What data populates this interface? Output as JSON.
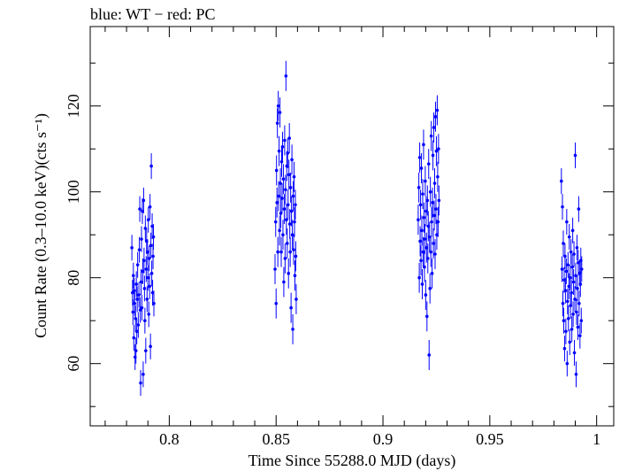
{
  "chart_data": {
    "type": "scatter",
    "title": "blue: WT − red: PC",
    "xlabel": "Time Since 55288.0 MJD (days)",
    "ylabel": "Count Rate (0.3–10.0 keV)(cts s⁻¹)",
    "xlim": [
      0.763,
      1.008
    ],
    "ylim": [
      45.5,
      138.5
    ],
    "x_ticks": [
      0.8,
      0.85,
      0.9,
      0.95,
      1
    ],
    "x_tick_labels": [
      "0.8",
      "0.85",
      "0.9",
      "0.95",
      "1"
    ],
    "y_ticks": [
      60,
      80,
      100,
      120
    ],
    "y_tick_labels": [
      "60",
      "80",
      "100",
      "120"
    ],
    "grid": false,
    "series": [
      {
        "name": "WT",
        "color": "#0000ff",
        "errorbar": true,
        "points": [
          {
            "x": 0.7825,
            "y": 87.0,
            "err": 3
          },
          {
            "x": 0.7828,
            "y": 76.5,
            "err": 3
          },
          {
            "x": 0.783,
            "y": 72.0,
            "err": 3
          },
          {
            "x": 0.7832,
            "y": 80.5,
            "err": 3
          },
          {
            "x": 0.7834,
            "y": 66.0,
            "err": 3
          },
          {
            "x": 0.7836,
            "y": 77.0,
            "err": 3
          },
          {
            "x": 0.7838,
            "y": 74.0,
            "err": 3
          },
          {
            "x": 0.784,
            "y": 61.5,
            "err": 3
          },
          {
            "x": 0.7842,
            "y": 70.5,
            "err": 3
          },
          {
            "x": 0.7844,
            "y": 63.0,
            "err": 3
          },
          {
            "x": 0.7846,
            "y": 78.5,
            "err": 3
          },
          {
            "x": 0.7848,
            "y": 67.5,
            "err": 3
          },
          {
            "x": 0.785,
            "y": 75.0,
            "err": 3
          },
          {
            "x": 0.7852,
            "y": 83.0,
            "err": 3
          },
          {
            "x": 0.7855,
            "y": 69.0,
            "err": 3
          },
          {
            "x": 0.7858,
            "y": 76.0,
            "err": 3
          },
          {
            "x": 0.786,
            "y": 86.5,
            "err": 3
          },
          {
            "x": 0.7862,
            "y": 96.0,
            "err": 3
          },
          {
            "x": 0.7864,
            "y": 72.5,
            "err": 3
          },
          {
            "x": 0.7866,
            "y": 55.5,
            "err": 3
          },
          {
            "x": 0.7868,
            "y": 79.0,
            "err": 3
          },
          {
            "x": 0.787,
            "y": 89.0,
            "err": 3
          },
          {
            "x": 0.7872,
            "y": 73.0,
            "err": 3
          },
          {
            "x": 0.7874,
            "y": 95.5,
            "err": 3
          },
          {
            "x": 0.7876,
            "y": 81.5,
            "err": 3
          },
          {
            "x": 0.7878,
            "y": 57.5,
            "err": 3
          },
          {
            "x": 0.788,
            "y": 98.0,
            "err": 3
          },
          {
            "x": 0.7882,
            "y": 84.0,
            "err": 3
          },
          {
            "x": 0.7884,
            "y": 77.5,
            "err": 3
          },
          {
            "x": 0.7886,
            "y": 70.0,
            "err": 3
          },
          {
            "x": 0.7888,
            "y": 91.5,
            "err": 3
          },
          {
            "x": 0.789,
            "y": 63.0,
            "err": 3
          },
          {
            "x": 0.7892,
            "y": 82.0,
            "err": 3
          },
          {
            "x": 0.7894,
            "y": 88.5,
            "err": 3
          },
          {
            "x": 0.7896,
            "y": 75.0,
            "err": 3
          },
          {
            "x": 0.7898,
            "y": 86.0,
            "err": 3
          },
          {
            "x": 0.79,
            "y": 80.0,
            "err": 3
          },
          {
            "x": 0.7902,
            "y": 93.5,
            "err": 3
          },
          {
            "x": 0.7904,
            "y": 71.5,
            "err": 3
          },
          {
            "x": 0.7906,
            "y": 84.5,
            "err": 3
          },
          {
            "x": 0.7908,
            "y": 78.0,
            "err": 3
          },
          {
            "x": 0.791,
            "y": 96.5,
            "err": 3
          },
          {
            "x": 0.7912,
            "y": 64.0,
            "err": 3
          },
          {
            "x": 0.7914,
            "y": 87.5,
            "err": 3
          },
          {
            "x": 0.7916,
            "y": 106.0,
            "err": 3
          },
          {
            "x": 0.7918,
            "y": 81.0,
            "err": 3
          },
          {
            "x": 0.792,
            "y": 92.0,
            "err": 3
          },
          {
            "x": 0.7922,
            "y": 76.5,
            "err": 3
          },
          {
            "x": 0.7924,
            "y": 85.0,
            "err": 3
          },
          {
            "x": 0.7926,
            "y": 89.5,
            "err": 3
          },
          {
            "x": 0.7928,
            "y": 74.0,
            "err": 3
          },
          {
            "x": 0.8495,
            "y": 82.0,
            "err": 3.5
          },
          {
            "x": 0.8498,
            "y": 93.0,
            "err": 3.5
          },
          {
            "x": 0.85,
            "y": 74.0,
            "err": 3.5
          },
          {
            "x": 0.8502,
            "y": 105.0,
            "err": 3.5
          },
          {
            "x": 0.8504,
            "y": 97.5,
            "err": 3.5
          },
          {
            "x": 0.8506,
            "y": 116.0,
            "err": 3.5
          },
          {
            "x": 0.8508,
            "y": 86.0,
            "err": 3.5
          },
          {
            "x": 0.851,
            "y": 120.0,
            "err": 3.5
          },
          {
            "x": 0.8512,
            "y": 99.0,
            "err": 3.5
          },
          {
            "x": 0.8514,
            "y": 109.5,
            "err": 3.5
          },
          {
            "x": 0.8516,
            "y": 91.0,
            "err": 3.5
          },
          {
            "x": 0.8518,
            "y": 118.5,
            "err": 3.5
          },
          {
            "x": 0.852,
            "y": 102.0,
            "err": 3.5
          },
          {
            "x": 0.8522,
            "y": 95.0,
            "err": 3.5
          },
          {
            "x": 0.8524,
            "y": 86.0,
            "err": 3.5
          },
          {
            "x": 0.8526,
            "y": 107.0,
            "err": 3.5
          },
          {
            "x": 0.8528,
            "y": 98.5,
            "err": 3.5
          },
          {
            "x": 0.853,
            "y": 110.5,
            "err": 3.5
          },
          {
            "x": 0.8532,
            "y": 90.0,
            "err": 3.5
          },
          {
            "x": 0.8534,
            "y": 103.0,
            "err": 3.5
          },
          {
            "x": 0.8536,
            "y": 79.0,
            "err": 3.5
          },
          {
            "x": 0.8538,
            "y": 96.0,
            "err": 3.5
          },
          {
            "x": 0.854,
            "y": 112.0,
            "err": 3.5
          },
          {
            "x": 0.8542,
            "y": 84.5,
            "err": 3.5
          },
          {
            "x": 0.8544,
            "y": 100.5,
            "err": 3.5
          },
          {
            "x": 0.8546,
            "y": 127.0,
            "err": 3.5
          },
          {
            "x": 0.8548,
            "y": 93.5,
            "err": 3.5
          },
          {
            "x": 0.855,
            "y": 106.0,
            "err": 3.5
          },
          {
            "x": 0.8552,
            "y": 88.0,
            "err": 3.5
          },
          {
            "x": 0.8554,
            "y": 109.0,
            "err": 3.5
          },
          {
            "x": 0.8556,
            "y": 97.0,
            "err": 3.5
          },
          {
            "x": 0.8558,
            "y": 81.0,
            "err": 3.5
          },
          {
            "x": 0.856,
            "y": 104.0,
            "err": 3.5
          },
          {
            "x": 0.8562,
            "y": 112.5,
            "err": 3.5
          },
          {
            "x": 0.8564,
            "y": 92.5,
            "err": 3.5
          },
          {
            "x": 0.8566,
            "y": 86.0,
            "err": 3.5
          },
          {
            "x": 0.8568,
            "y": 101.0,
            "err": 3.5
          },
          {
            "x": 0.857,
            "y": 73.0,
            "err": 3.5
          },
          {
            "x": 0.8572,
            "y": 95.5,
            "err": 3.5
          },
          {
            "x": 0.8574,
            "y": 107.5,
            "err": 3.5
          },
          {
            "x": 0.8576,
            "y": 90.0,
            "err": 3.5
          },
          {
            "x": 0.8578,
            "y": 68.0,
            "err": 3.5
          },
          {
            "x": 0.858,
            "y": 99.0,
            "err": 3.5
          },
          {
            "x": 0.8582,
            "y": 86.5,
            "err": 3.5
          },
          {
            "x": 0.8584,
            "y": 103.5,
            "err": 3.5
          },
          {
            "x": 0.8586,
            "y": 93.0,
            "err": 3.5
          },
          {
            "x": 0.8588,
            "y": 80.5,
            "err": 3.5
          },
          {
            "x": 0.859,
            "y": 97.0,
            "err": 3.5
          },
          {
            "x": 0.8592,
            "y": 85.0,
            "err": 3.5
          },
          {
            "x": 0.8594,
            "y": 75.0,
            "err": 3.5
          },
          {
            "x": 0.9165,
            "y": 93.5,
            "err": 3.5
          },
          {
            "x": 0.9168,
            "y": 101.0,
            "err": 3.5
          },
          {
            "x": 0.917,
            "y": 80.0,
            "err": 3.5
          },
          {
            "x": 0.9172,
            "y": 108.0,
            "err": 3.5
          },
          {
            "x": 0.9174,
            "y": 88.5,
            "err": 3.5
          },
          {
            "x": 0.9176,
            "y": 97.0,
            "err": 3.5
          },
          {
            "x": 0.9178,
            "y": 84.0,
            "err": 3.5
          },
          {
            "x": 0.918,
            "y": 105.5,
            "err": 3.5
          },
          {
            "x": 0.9182,
            "y": 91.0,
            "err": 3.5
          },
          {
            "x": 0.9184,
            "y": 78.5,
            "err": 3.5
          },
          {
            "x": 0.9186,
            "y": 99.5,
            "err": 3.5
          },
          {
            "x": 0.9188,
            "y": 86.0,
            "err": 3.5
          },
          {
            "x": 0.919,
            "y": 111.0,
            "err": 3.5
          },
          {
            "x": 0.9192,
            "y": 94.0,
            "err": 3.5
          },
          {
            "x": 0.9194,
            "y": 82.5,
            "err": 3.5
          },
          {
            "x": 0.9196,
            "y": 89.0,
            "err": 3.5
          },
          {
            "x": 0.9198,
            "y": 102.5,
            "err": 3.5
          },
          {
            "x": 0.92,
            "y": 76.0,
            "err": 3.5
          },
          {
            "x": 0.9202,
            "y": 95.5,
            "err": 3.5
          },
          {
            "x": 0.9204,
            "y": 87.0,
            "err": 3.5
          },
          {
            "x": 0.9206,
            "y": 71.0,
            "err": 3.5
          },
          {
            "x": 0.9208,
            "y": 98.0,
            "err": 3.5
          },
          {
            "x": 0.921,
            "y": 84.5,
            "err": 3.5
          },
          {
            "x": 0.9212,
            "y": 92.0,
            "err": 3.5
          },
          {
            "x": 0.9214,
            "y": 106.5,
            "err": 3.5
          },
          {
            "x": 0.9216,
            "y": 62.0,
            "err": 3.5
          },
          {
            "x": 0.9218,
            "y": 89.5,
            "err": 3.5
          },
          {
            "x": 0.922,
            "y": 77.5,
            "err": 3.5
          },
          {
            "x": 0.9222,
            "y": 100.0,
            "err": 3.5
          },
          {
            "x": 0.9224,
            "y": 86.0,
            "err": 3.5
          },
          {
            "x": 0.9226,
            "y": 113.0,
            "err": 3.5
          },
          {
            "x": 0.9228,
            "y": 93.0,
            "err": 3.5
          },
          {
            "x": 0.923,
            "y": 81.0,
            "err": 3.5
          },
          {
            "x": 0.9232,
            "y": 97.5,
            "err": 3.5
          },
          {
            "x": 0.9234,
            "y": 108.5,
            "err": 3.5
          },
          {
            "x": 0.9236,
            "y": 88.0,
            "err": 3.5
          },
          {
            "x": 0.9238,
            "y": 115.0,
            "err": 3.5
          },
          {
            "x": 0.924,
            "y": 94.5,
            "err": 3.5
          },
          {
            "x": 0.9242,
            "y": 102.0,
            "err": 3.5
          },
          {
            "x": 0.9244,
            "y": 85.5,
            "err": 3.5
          },
          {
            "x": 0.9246,
            "y": 117.5,
            "err": 3.5
          },
          {
            "x": 0.9248,
            "y": 96.0,
            "err": 3.5
          },
          {
            "x": 0.925,
            "y": 109.5,
            "err": 3.5
          },
          {
            "x": 0.9252,
            "y": 90.0,
            "err": 3.5
          },
          {
            "x": 0.9254,
            "y": 119.0,
            "err": 3.5
          },
          {
            "x": 0.9256,
            "y": 103.5,
            "err": 3.5
          },
          {
            "x": 0.9258,
            "y": 93.0,
            "err": 3.5
          },
          {
            "x": 0.926,
            "y": 110.0,
            "err": 3.5
          },
          {
            "x": 0.9262,
            "y": 98.0,
            "err": 3.5
          },
          {
            "x": 0.9835,
            "y": 102.5,
            "err": 3
          },
          {
            "x": 0.9838,
            "y": 82.0,
            "err": 3
          },
          {
            "x": 0.984,
            "y": 96.5,
            "err": 3
          },
          {
            "x": 0.9842,
            "y": 74.0,
            "err": 3
          },
          {
            "x": 0.9844,
            "y": 88.0,
            "err": 3
          },
          {
            "x": 0.9846,
            "y": 70.0,
            "err": 3
          },
          {
            "x": 0.9848,
            "y": 79.5,
            "err": 3
          },
          {
            "x": 0.985,
            "y": 63.5,
            "err": 3
          },
          {
            "x": 0.9852,
            "y": 85.0,
            "err": 3
          },
          {
            "x": 0.9854,
            "y": 77.0,
            "err": 3
          },
          {
            "x": 0.9856,
            "y": 67.5,
            "err": 3
          },
          {
            "x": 0.9858,
            "y": 81.5,
            "err": 3
          },
          {
            "x": 0.986,
            "y": 93.0,
            "err": 3
          },
          {
            "x": 0.9862,
            "y": 60.0,
            "err": 3
          },
          {
            "x": 0.9864,
            "y": 74.5,
            "err": 3
          },
          {
            "x": 0.9866,
            "y": 83.0,
            "err": 3
          },
          {
            "x": 0.9868,
            "y": 70.5,
            "err": 3
          },
          {
            "x": 0.987,
            "y": 78.0,
            "err": 3
          },
          {
            "x": 0.9872,
            "y": 89.5,
            "err": 3
          },
          {
            "x": 0.9874,
            "y": 65.0,
            "err": 3
          },
          {
            "x": 0.9876,
            "y": 80.0,
            "err": 3
          },
          {
            "x": 0.9878,
            "y": 73.5,
            "err": 3
          },
          {
            "x": 0.988,
            "y": 86.0,
            "err": 3
          },
          {
            "x": 0.9882,
            "y": 76.5,
            "err": 3
          },
          {
            "x": 0.9884,
            "y": 68.0,
            "err": 3
          },
          {
            "x": 0.9886,
            "y": 82.5,
            "err": 3
          },
          {
            "x": 0.9888,
            "y": 91.0,
            "err": 3
          },
          {
            "x": 0.989,
            "y": 71.5,
            "err": 3
          },
          {
            "x": 0.9892,
            "y": 79.0,
            "err": 3
          },
          {
            "x": 0.9894,
            "y": 85.5,
            "err": 3
          },
          {
            "x": 0.9896,
            "y": 62.5,
            "err": 3
          },
          {
            "x": 0.9898,
            "y": 75.0,
            "err": 3
          },
          {
            "x": 0.99,
            "y": 108.5,
            "err": 3
          },
          {
            "x": 0.9902,
            "y": 80.5,
            "err": 3
          },
          {
            "x": 0.9904,
            "y": 57.5,
            "err": 3
          },
          {
            "x": 0.9906,
            "y": 72.0,
            "err": 3
          },
          {
            "x": 0.9908,
            "y": 87.0,
            "err": 3
          },
          {
            "x": 0.991,
            "y": 77.5,
            "err": 3
          },
          {
            "x": 0.9912,
            "y": 68.5,
            "err": 3
          },
          {
            "x": 0.9914,
            "y": 83.5,
            "err": 3
          },
          {
            "x": 0.9916,
            "y": 96.0,
            "err": 3
          },
          {
            "x": 0.9918,
            "y": 74.0,
            "err": 3
          },
          {
            "x": 0.992,
            "y": 81.0,
            "err": 3
          },
          {
            "x": 0.9922,
            "y": 66.5,
            "err": 3
          },
          {
            "x": 0.9924,
            "y": 78.5,
            "err": 3
          },
          {
            "x": 0.9926,
            "y": 84.0,
            "err": 3
          },
          {
            "x": 0.9928,
            "y": 70.0,
            "err": 3
          },
          {
            "x": 0.993,
            "y": 82.0,
            "err": 3
          }
        ]
      }
    ]
  }
}
